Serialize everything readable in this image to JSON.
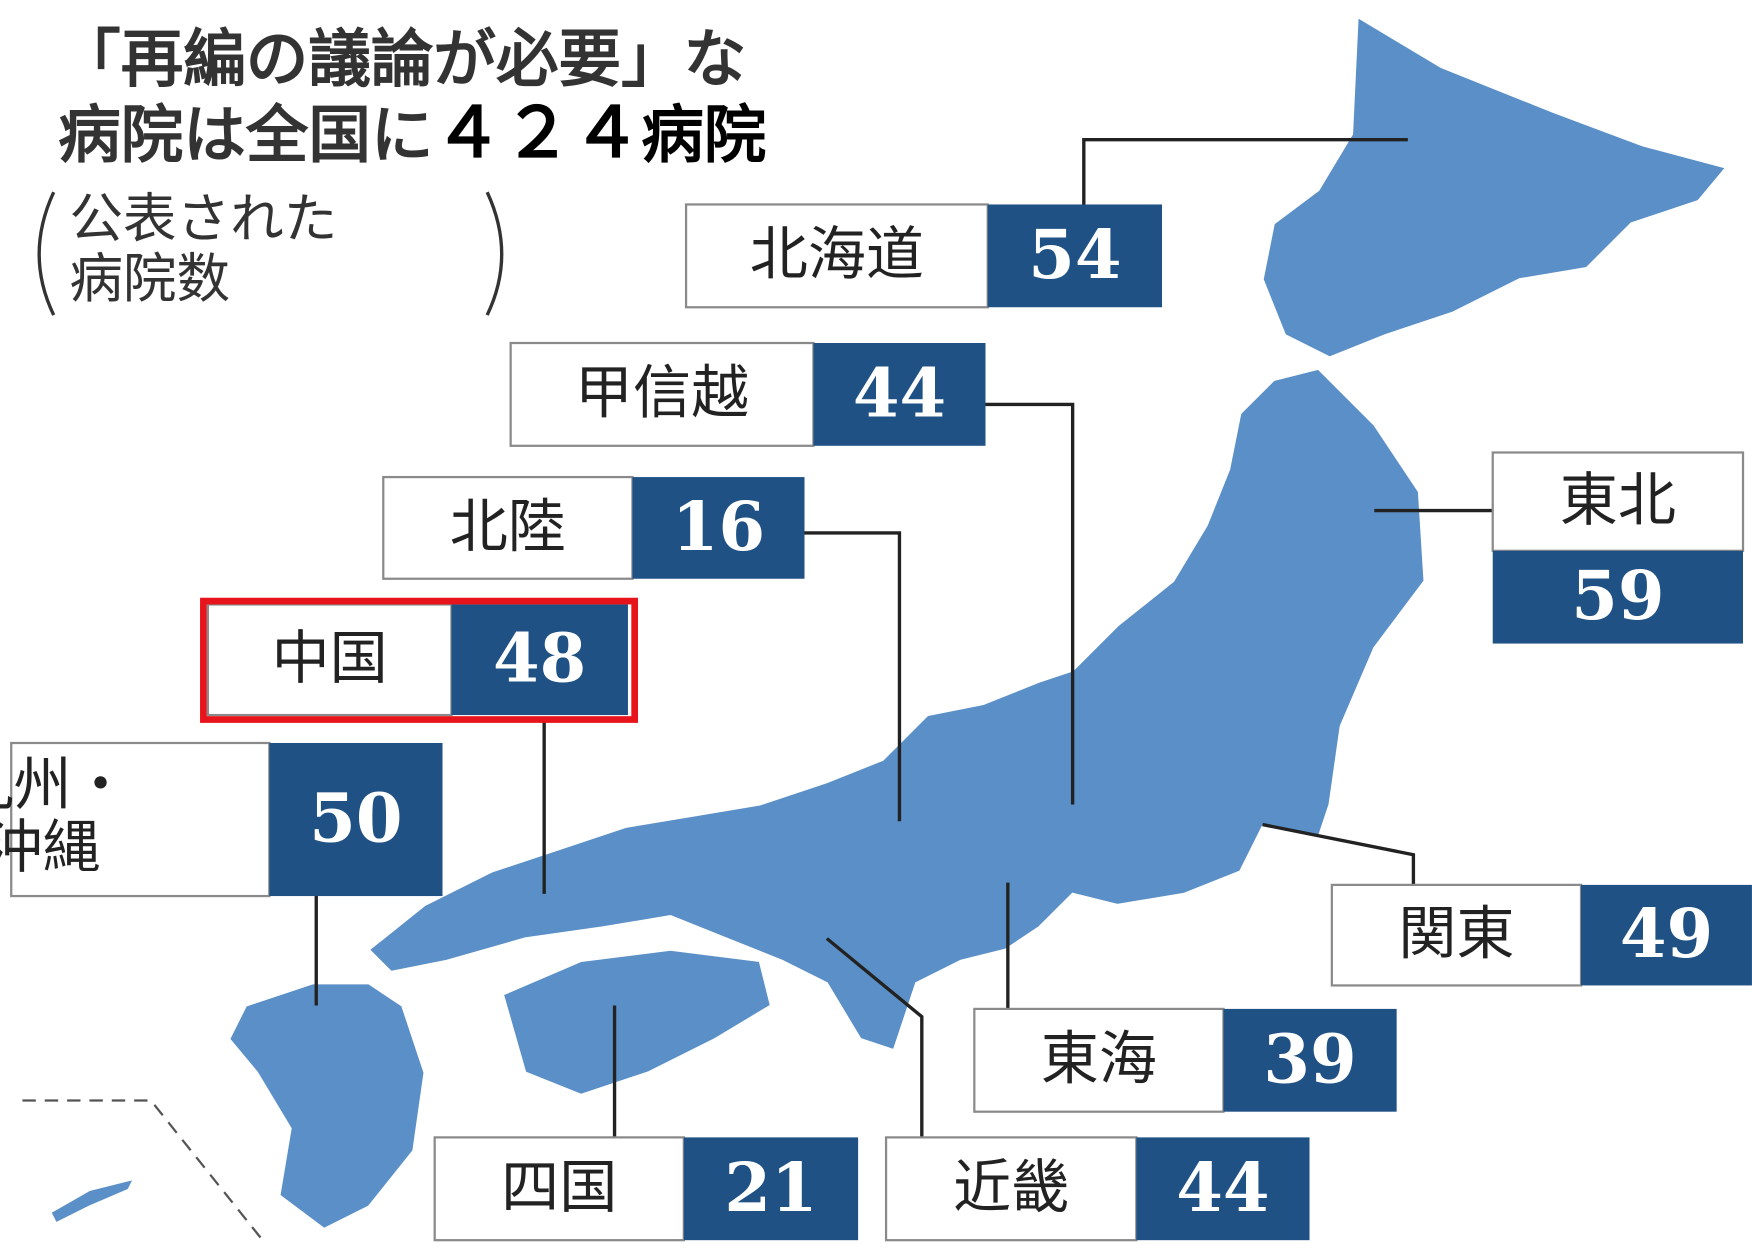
{
  "header": {
    "title_line1": "「再編の議論が必要」な",
    "title_line2_prefix": "病院は全国に",
    "total": "４２４",
    "title_line2_suffix": "病院",
    "subtitle_line1": "公表された",
    "subtitle_line2": "病院数"
  },
  "regions": [
    {
      "name": "北海道",
      "count": 54
    },
    {
      "name": "甲信越",
      "count": 44
    },
    {
      "name": "北陸",
      "count": 16
    },
    {
      "name": "中国",
      "count": 48
    },
    {
      "name_lines": [
        "九州・",
        "沖縄"
      ],
      "count": 50
    },
    {
      "name": "東北",
      "count": 59
    },
    {
      "name": "関東",
      "count": 49
    },
    {
      "name": "東海",
      "count": 39
    },
    {
      "name": "四国",
      "count": 21
    },
    {
      "name": "近畿",
      "count": 44
    }
  ]
}
